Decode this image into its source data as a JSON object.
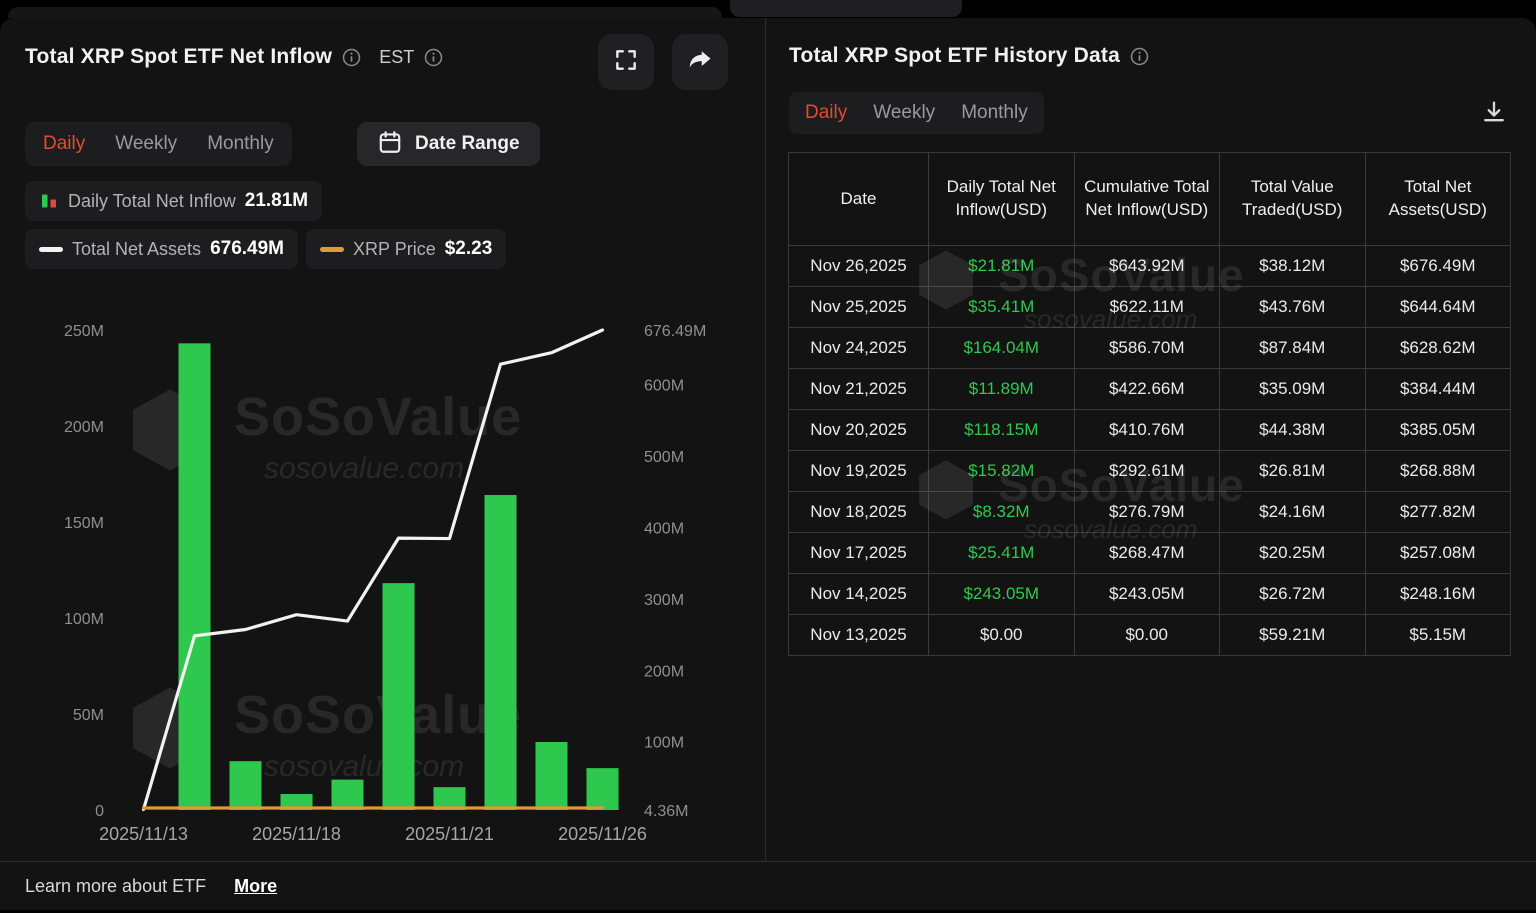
{
  "brand": {
    "watermark_title": "SoSoValue",
    "watermark_sub": "sosovalue.com"
  },
  "colors": {
    "accent_red": "#e14b2f",
    "positive_green": "#2fc84e",
    "xrp_orange": "#dd9c33",
    "net_assets_line": "#f2f2f2",
    "panel_bg": "#131313"
  },
  "inflow_panel": {
    "title": "Total XRP Spot ETF Net Inflow",
    "est_label": "EST",
    "tabs": [
      {
        "label": "Daily",
        "active": true
      },
      {
        "label": "Weekly",
        "active": false
      },
      {
        "label": "Monthly",
        "active": false
      }
    ],
    "date_range_label": "Date Range",
    "legend": [
      {
        "label": "Daily Total Net Inflow",
        "value": "21.81M"
      },
      {
        "label": "Total Net Assets",
        "value": "676.49M"
      },
      {
        "label": "XRP Price",
        "value": "$2.23"
      }
    ]
  },
  "chart_data": {
    "type": "bar+line",
    "title": "Total XRP Spot ETF Net Inflow",
    "x": [
      "2025/11/13",
      "2025/11/14",
      "2025/11/17",
      "2025/11/18",
      "2025/11/19",
      "2025/11/20",
      "2025/11/21",
      "2025/11/24",
      "2025/11/25",
      "2025/11/26"
    ],
    "x_tick_indices": [
      0,
      3,
      6,
      9
    ],
    "x_tick_labels": [
      "2025/11/13",
      "2025/11/18",
      "2025/11/21",
      "2025/11/26"
    ],
    "series": [
      {
        "name": "Daily Total Net Inflow",
        "type": "bar",
        "axis": "left",
        "color": "#2fc84e",
        "values": [
          0,
          243.05,
          25.41,
          8.32,
          15.82,
          118.15,
          11.89,
          164.04,
          35.41,
          21.81
        ]
      },
      {
        "name": "Total Net Assets",
        "type": "line",
        "axis": "right",
        "color": "#f2f2f2",
        "values": [
          5.15,
          248.16,
          257.08,
          277.82,
          268.88,
          385.05,
          384.44,
          628.62,
          644.64,
          676.49
        ]
      },
      {
        "name": "XRP Price",
        "type": "line",
        "axis": "price",
        "color": "#dd9c33",
        "values": [
          2.23,
          2.23,
          2.23,
          2.23,
          2.23,
          2.23,
          2.23,
          2.23,
          2.23,
          2.23
        ]
      }
    ],
    "left_axis": {
      "min": 0,
      "max": 250,
      "unit": "M",
      "ticks": [
        {
          "v": 0,
          "label": "0"
        },
        {
          "v": 50,
          "label": "50M"
        },
        {
          "v": 100,
          "label": "100M"
        },
        {
          "v": 150,
          "label": "150M"
        },
        {
          "v": 200,
          "label": "200M"
        },
        {
          "v": 250,
          "label": "250M"
        }
      ]
    },
    "right_axis": {
      "min": 4.36,
      "max": 676.49,
      "ticks": [
        {
          "v": 4.36,
          "label": "4.36M"
        },
        {
          "v": 100,
          "label": "100M"
        },
        {
          "v": 200,
          "label": "200M"
        },
        {
          "v": 300,
          "label": "300M"
        },
        {
          "v": 400,
          "label": "400M"
        },
        {
          "v": 500,
          "label": "500M"
        },
        {
          "v": 600,
          "label": "600M"
        },
        {
          "v": 676.49,
          "label": "676.49M"
        }
      ]
    },
    "legend_position": "top",
    "grid": false
  },
  "history_panel": {
    "title": "Total XRP Spot ETF History Data",
    "tabs": [
      {
        "label": "Daily",
        "active": true
      },
      {
        "label": "Weekly",
        "active": false
      },
      {
        "label": "Monthly",
        "active": false
      }
    ],
    "table": {
      "headers": [
        "Date",
        "Daily Total Net Inflow(USD)",
        "Cumulative Total Net Inflow(USD)",
        "Total Value Traded(USD)",
        "Total Net Assets(USD)"
      ],
      "rows": [
        {
          "date": "Nov 26,2025",
          "inflow": "$21.81M",
          "inflow_positive": true,
          "cumulative": "$643.92M",
          "traded": "$38.12M",
          "assets": "$676.49M"
        },
        {
          "date": "Nov 25,2025",
          "inflow": "$35.41M",
          "inflow_positive": true,
          "cumulative": "$622.11M",
          "traded": "$43.76M",
          "assets": "$644.64M"
        },
        {
          "date": "Nov 24,2025",
          "inflow": "$164.04M",
          "inflow_positive": true,
          "cumulative": "$586.70M",
          "traded": "$87.84M",
          "assets": "$628.62M"
        },
        {
          "date": "Nov 21,2025",
          "inflow": "$11.89M",
          "inflow_positive": true,
          "cumulative": "$422.66M",
          "traded": "$35.09M",
          "assets": "$384.44M"
        },
        {
          "date": "Nov 20,2025",
          "inflow": "$118.15M",
          "inflow_positive": true,
          "cumulative": "$410.76M",
          "traded": "$44.38M",
          "assets": "$385.05M"
        },
        {
          "date": "Nov 19,2025",
          "inflow": "$15.82M",
          "inflow_positive": true,
          "cumulative": "$292.61M",
          "traded": "$26.81M",
          "assets": "$268.88M"
        },
        {
          "date": "Nov 18,2025",
          "inflow": "$8.32M",
          "inflow_positive": true,
          "cumulative": "$276.79M",
          "traded": "$24.16M",
          "assets": "$277.82M"
        },
        {
          "date": "Nov 17,2025",
          "inflow": "$25.41M",
          "inflow_positive": true,
          "cumulative": "$268.47M",
          "traded": "$20.25M",
          "assets": "$257.08M"
        },
        {
          "date": "Nov 14,2025",
          "inflow": "$243.05M",
          "inflow_positive": true,
          "cumulative": "$243.05M",
          "traded": "$26.72M",
          "assets": "$248.16M"
        },
        {
          "date": "Nov 13,2025",
          "inflow": "$0.00",
          "inflow_positive": false,
          "cumulative": "$0.00",
          "traded": "$59.21M",
          "assets": "$5.15M"
        }
      ]
    }
  },
  "footer": {
    "text": "Learn more about ETF",
    "link_label": "More"
  }
}
